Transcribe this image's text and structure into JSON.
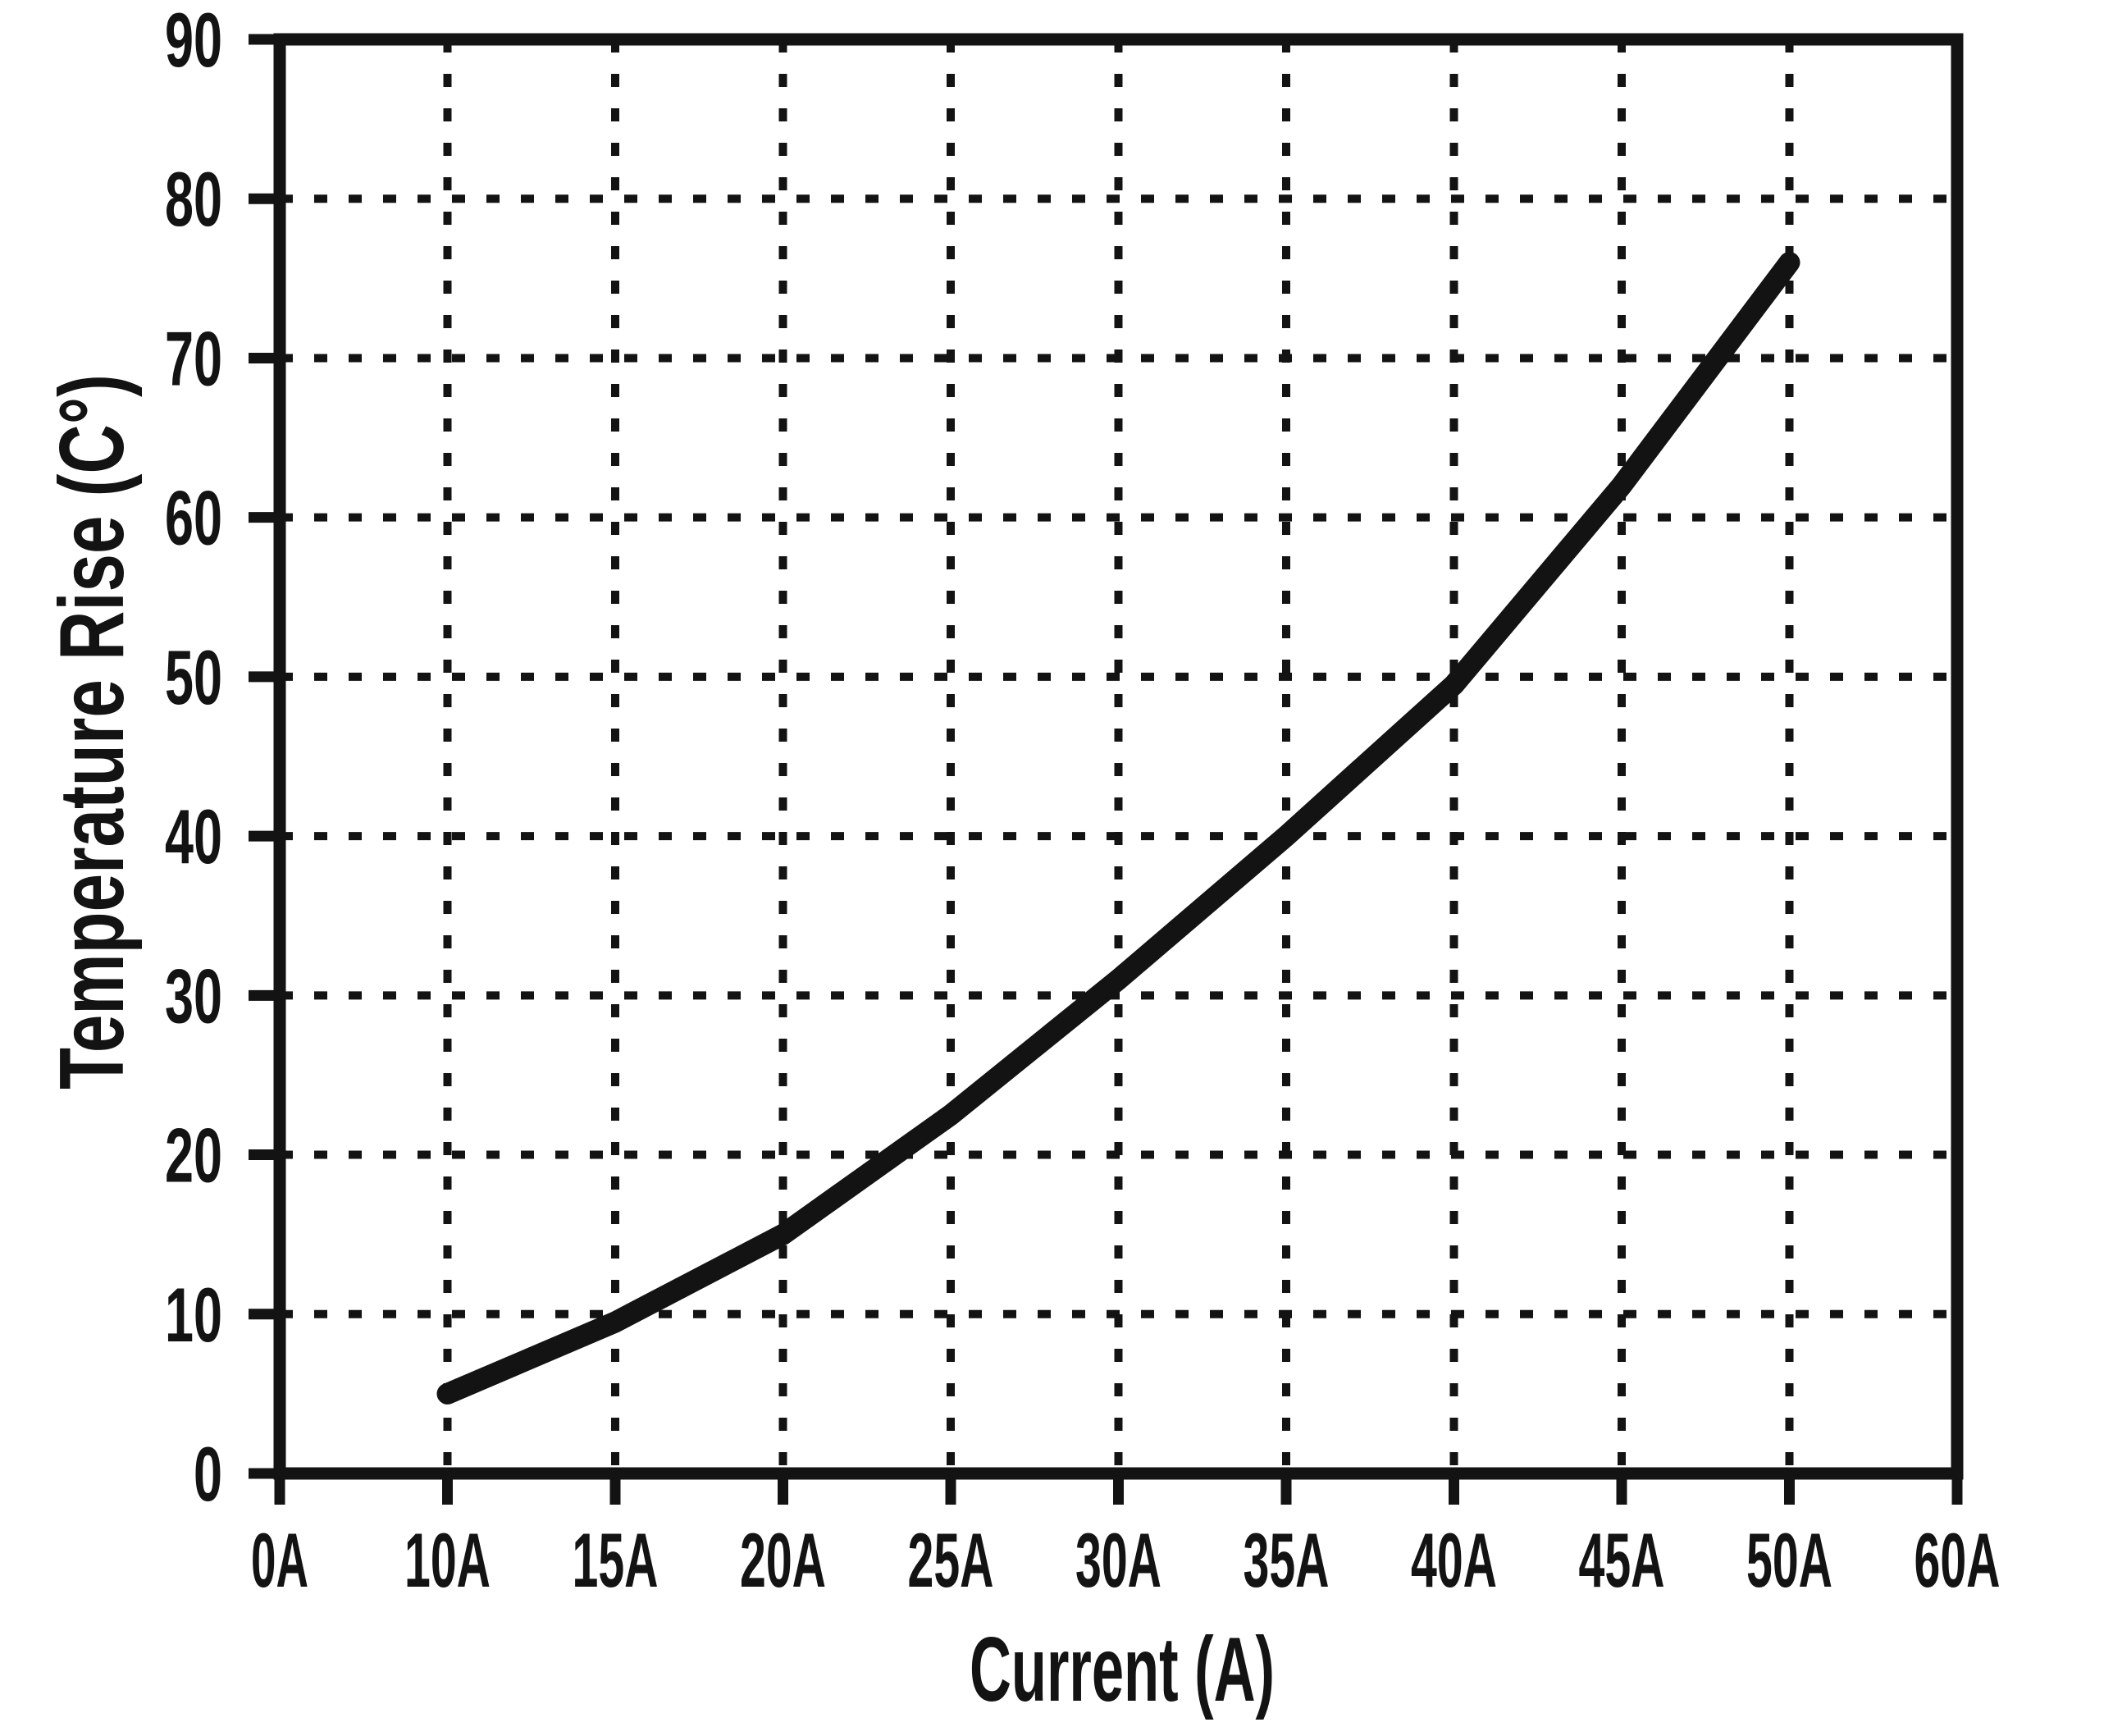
{
  "page": {
    "background": "#ffffff"
  },
  "chart_data": {
    "type": "line",
    "title": "",
    "xlabel": "Current (A)",
    "ylabel": "Temperature Rise (C°)",
    "x_categories": [
      "0A",
      "10A",
      "15A",
      "20A",
      "25A",
      "30A",
      "35A",
      "40A",
      "45A",
      "50A",
      "60A"
    ],
    "x_gridlines": [
      "10A",
      "15A",
      "20A",
      "25A",
      "30A",
      "35A",
      "40A",
      "45A",
      "50A"
    ],
    "x_spacing": "uniform-categorical",
    "y_ticks": [
      0,
      10,
      20,
      30,
      40,
      50,
      60,
      70,
      80,
      90
    ],
    "y_gridlines": [
      10,
      20,
      30,
      40,
      50,
      60,
      70,
      80
    ],
    "ylim": [
      0,
      90
    ],
    "grid": "dotted",
    "legend": "none",
    "series": [
      {
        "name": "temperature-rise-vs-current",
        "points": [
          {
            "x": "10A",
            "y": 5
          },
          {
            "x": "15A",
            "y": 9.5
          },
          {
            "x": "20A",
            "y": 15
          },
          {
            "x": "25A",
            "y": 22.5
          },
          {
            "x": "30A",
            "y": 31
          },
          {
            "x": "35A",
            "y": 40
          },
          {
            "x": "40A",
            "y": 49.5
          },
          {
            "x": "45A",
            "y": 62
          },
          {
            "x": "50A",
            "y": 76
          }
        ],
        "color": "#131313"
      }
    ],
    "colors": {
      "axis": "#131313",
      "grid": "#131313",
      "line": "#131313",
      "background": "#ffffff"
    }
  }
}
